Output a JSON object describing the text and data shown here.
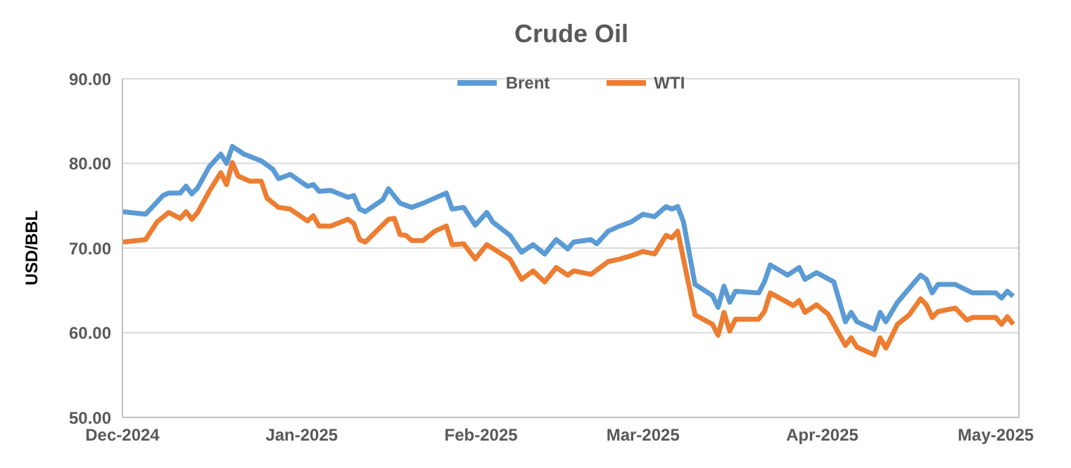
{
  "chart_data": {
    "type": "line",
    "title": "Crude Oil",
    "ylabel": "USD/BBL",
    "xlim": [
      "2024-12-01",
      "2025-05-05"
    ],
    "xticks": [
      {
        "value": "2024-12-01",
        "label": "Dec-2024"
      },
      {
        "value": "2025-01-01",
        "label": "Jan-2025"
      },
      {
        "value": "2025-02-01",
        "label": "Feb-2025"
      },
      {
        "value": "2025-03-01",
        "label": "Mar-2025"
      },
      {
        "value": "2025-04-01",
        "label": "Apr-2025"
      },
      {
        "value": "2025-05-01",
        "label": "May-2025"
      }
    ],
    "ylim": [
      50,
      90
    ],
    "yticks": [
      {
        "value": 50,
        "label": "50.00"
      },
      {
        "value": 60,
        "label": "60.00"
      },
      {
        "value": 70,
        "label": "70.00"
      },
      {
        "value": 80,
        "label": "80.00"
      },
      {
        "value": 90,
        "label": "90.00"
      }
    ],
    "grid": "y",
    "legend": "top",
    "marker": "none",
    "line_style": "solid",
    "series": [
      {
        "name": "Brent",
        "color": "#5b9bd5",
        "x": [
          "2024-12-01",
          "2024-12-05",
          "2024-12-08",
          "2024-12-09",
          "2024-12-11",
          "2024-12-12",
          "2024-12-13",
          "2024-12-14",
          "2024-12-16",
          "2024-12-18",
          "2024-12-19",
          "2024-12-20",
          "2024-12-22",
          "2024-12-25",
          "2024-12-27",
          "2024-12-28",
          "2024-12-30",
          "2025-01-02",
          "2025-01-03",
          "2025-01-04",
          "2025-01-06",
          "2025-01-09",
          "2025-01-10",
          "2025-01-11",
          "2025-01-12",
          "2025-01-15",
          "2025-01-16",
          "2025-01-18",
          "2025-01-20",
          "2025-01-22",
          "2025-01-24",
          "2025-01-26",
          "2025-01-27",
          "2025-01-29",
          "2025-01-31",
          "2025-02-02",
          "2025-02-03",
          "2025-02-06",
          "2025-02-08",
          "2025-02-10",
          "2025-02-12",
          "2025-02-14",
          "2025-02-16",
          "2025-02-17",
          "2025-02-20",
          "2025-02-21",
          "2025-02-23",
          "2025-02-25",
          "2025-02-27",
          "2025-03-01",
          "2025-03-03",
          "2025-03-05",
          "2025-03-06",
          "2025-03-07",
          "2025-03-08",
          "2025-03-10",
          "2025-03-13",
          "2025-03-14",
          "2025-03-15",
          "2025-03-16",
          "2025-03-17",
          "2025-03-21",
          "2025-03-22",
          "2025-03-23",
          "2025-03-26",
          "2025-03-28",
          "2025-03-29",
          "2025-03-31",
          "2025-04-03",
          "2025-04-05",
          "2025-04-06",
          "2025-04-07",
          "2025-04-10",
          "2025-04-11",
          "2025-04-12",
          "2025-04-14",
          "2025-04-16",
          "2025-04-18",
          "2025-04-19",
          "2025-04-20",
          "2025-04-21",
          "2025-04-24",
          "2025-04-27",
          "2025-05-01",
          "2025-05-02",
          "2025-05-03",
          "2025-05-04"
        ],
        "values": [
          74.3,
          74.0,
          76.2,
          76.5,
          76.5,
          77.3,
          76.4,
          77.1,
          79.6,
          81.1,
          80.0,
          82.0,
          81.1,
          80.3,
          79.3,
          78.2,
          78.7,
          77.3,
          77.5,
          76.7,
          76.8,
          76.0,
          76.2,
          74.6,
          74.3,
          75.7,
          77.0,
          75.3,
          74.8,
          75.3,
          75.9,
          76.5,
          74.6,
          74.8,
          72.7,
          74.2,
          73.1,
          71.5,
          69.5,
          70.4,
          69.3,
          71.0,
          69.9,
          70.7,
          71.0,
          70.5,
          72.0,
          72.6,
          73.1,
          74.0,
          73.7,
          74.9,
          74.6,
          74.9,
          73.1,
          65.7,
          64.4,
          63.0,
          65.5,
          63.6,
          64.9,
          64.7,
          66.0,
          68.0,
          66.8,
          67.7,
          66.3,
          67.1,
          66.0,
          61.3,
          62.4,
          61.3,
          60.4,
          62.4,
          61.3,
          63.6,
          65.2,
          66.8,
          66.3,
          64.7,
          65.7,
          65.7,
          64.7,
          64.7,
          64.1,
          64.9,
          64.3
        ]
      },
      {
        "name": "WTI",
        "color": "#ed7d31",
        "x": [
          "2024-12-01",
          "2024-12-05",
          "2024-12-07",
          "2024-12-09",
          "2024-12-11",
          "2024-12-12",
          "2024-12-13",
          "2024-12-14",
          "2024-12-16",
          "2024-12-18",
          "2024-12-19",
          "2024-12-20",
          "2024-12-21",
          "2024-12-23",
          "2024-12-25",
          "2024-12-26",
          "2024-12-28",
          "2024-12-30",
          "2025-01-02",
          "2025-01-03",
          "2025-01-04",
          "2025-01-06",
          "2025-01-09",
          "2025-01-10",
          "2025-01-11",
          "2025-01-12",
          "2025-01-16",
          "2025-01-17",
          "2025-01-18",
          "2025-01-19",
          "2025-01-20",
          "2025-01-22",
          "2025-01-24",
          "2025-01-26",
          "2025-01-27",
          "2025-01-29",
          "2025-01-31",
          "2025-02-02",
          "2025-02-06",
          "2025-02-08",
          "2025-02-10",
          "2025-02-12",
          "2025-02-14",
          "2025-02-16",
          "2025-02-17",
          "2025-02-20",
          "2025-02-23",
          "2025-02-25",
          "2025-02-27",
          "2025-03-01",
          "2025-03-03",
          "2025-03-05",
          "2025-03-06",
          "2025-03-07",
          "2025-03-10",
          "2025-03-13",
          "2025-03-14",
          "2025-03-15",
          "2025-03-16",
          "2025-03-17",
          "2025-03-21",
          "2025-03-22",
          "2025-03-23",
          "2025-03-27",
          "2025-03-28",
          "2025-03-29",
          "2025-03-31",
          "2025-04-02",
          "2025-04-05",
          "2025-04-06",
          "2025-04-07",
          "2025-04-10",
          "2025-04-11",
          "2025-04-12",
          "2025-04-14",
          "2025-04-16",
          "2025-04-18",
          "2025-04-19",
          "2025-04-20",
          "2025-04-21",
          "2025-04-24",
          "2025-04-26",
          "2025-04-27",
          "2025-05-01",
          "2025-05-02",
          "2025-05-03",
          "2025-05-04"
        ],
        "values": [
          70.7,
          71.0,
          73.1,
          74.2,
          73.5,
          74.3,
          73.4,
          74.2,
          76.7,
          78.9,
          77.5,
          80.1,
          78.5,
          77.9,
          77.9,
          75.9,
          74.8,
          74.6,
          73.2,
          73.8,
          72.6,
          72.6,
          73.4,
          72.9,
          71.0,
          70.7,
          73.4,
          73.5,
          71.6,
          71.5,
          70.9,
          70.9,
          72.0,
          72.6,
          70.4,
          70.5,
          68.7,
          70.4,
          68.7,
          66.3,
          67.3,
          66.0,
          67.7,
          66.8,
          67.3,
          66.9,
          68.4,
          68.7,
          69.1,
          69.6,
          69.3,
          71.5,
          71.2,
          72.0,
          62.1,
          61.0,
          59.7,
          62.4,
          60.2,
          61.6,
          61.6,
          62.5,
          64.7,
          63.2,
          63.8,
          62.4,
          63.3,
          62.2,
          58.5,
          59.4,
          58.3,
          57.4,
          59.4,
          58.2,
          61.0,
          62.1,
          64.0,
          63.3,
          61.8,
          62.5,
          62.9,
          61.5,
          61.8,
          61.8,
          61.0,
          61.9,
          61.0
        ]
      }
    ]
  }
}
